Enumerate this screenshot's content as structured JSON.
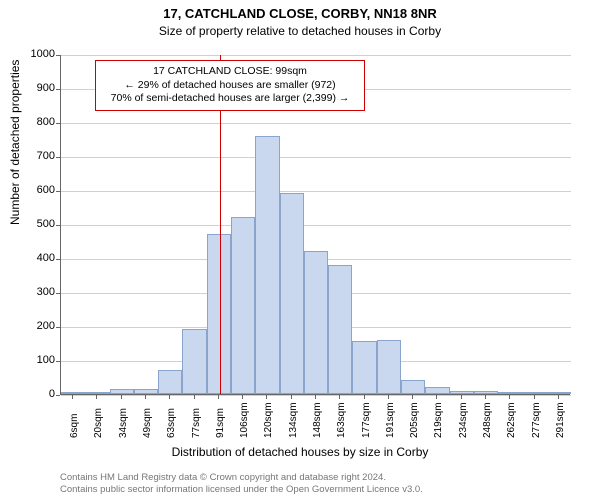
{
  "title": "17, CATCHLAND CLOSE, CORBY, NN18 8NR",
  "subtitle": "Size of property relative to detached houses in Corby",
  "y_axis": {
    "label": "Number of detached properties",
    "min": 0,
    "max": 1000,
    "tick_step": 100,
    "ticks": [
      0,
      100,
      200,
      300,
      400,
      500,
      600,
      700,
      800,
      900,
      1000
    ]
  },
  "x_axis": {
    "label": "Distribution of detached houses by size in Corby",
    "categories": [
      "6sqm",
      "20sqm",
      "34sqm",
      "49sqm",
      "63sqm",
      "77sqm",
      "91sqm",
      "106sqm",
      "120sqm",
      "134sqm",
      "148sqm",
      "163sqm",
      "177sqm",
      "191sqm",
      "205sqm",
      "219sqm",
      "234sqm",
      "248sqm",
      "262sqm",
      "277sqm",
      "291sqm"
    ]
  },
  "chart": {
    "type": "histogram",
    "bar_fill": "#c9d8ee",
    "bar_stroke": "#8aa5cc",
    "background": "#ffffff",
    "grid_color": "#d0d0d0",
    "bar_width_ratio": 1.0,
    "values": [
      0,
      5,
      15,
      15,
      70,
      190,
      470,
      520,
      760,
      590,
      420,
      380,
      155,
      160,
      40,
      20,
      10,
      10,
      5,
      5,
      5
    ]
  },
  "marker": {
    "value_sqm": 99,
    "line_color": "#cc0000",
    "box": {
      "line1": "17 CATCHLAND CLOSE: 99sqm",
      "line2": "← 29% of detached houses are smaller (972)",
      "line3": "70% of semi-detached houses are larger (2,399) →"
    }
  },
  "footer": {
    "line1": "Contains HM Land Registry data © Crown copyright and database right 2024.",
    "line2": "Contains public sector information licensed under the Open Government Licence v3.0."
  },
  "typography": {
    "title_fontsize": 13,
    "subtitle_fontsize": 12,
    "axis_label_fontsize": 12,
    "tick_fontsize": 11,
    "footer_fontsize": 9.5
  }
}
